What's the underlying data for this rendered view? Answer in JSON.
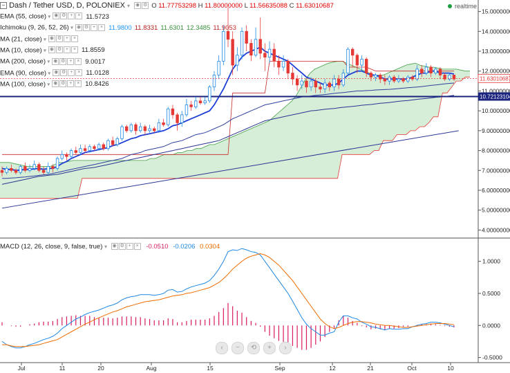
{
  "header": {
    "title": "Dash / Tether USD, D, POLONIEX",
    "ohlc": [
      {
        "k": "O",
        "v": "11.77753298"
      },
      {
        "k": "H",
        "v": "11.80000000"
      },
      {
        "k": "L",
        "v": "11.56635088"
      },
      {
        "k": "C",
        "v": "11.63010687"
      }
    ],
    "status": "realtime"
  },
  "indicators": [
    {
      "label": "EMA (55, close)",
      "values": [
        "11.5723"
      ],
      "color": "#1565c0"
    },
    {
      "label": "Ichimoku (9, 26, 52, 26)",
      "values": [
        "11.9800",
        "11.8331",
        "11.6301",
        "12.3485",
        "11.9053"
      ],
      "colors": [
        "#2196f3",
        "#b71c1c",
        "#388e3c",
        "#388e3c",
        "#c62828"
      ]
    },
    {
      "label": "MA (21, close)",
      "values": [],
      "color": "#888888"
    },
    {
      "label": "MA (10, close)",
      "values": [
        "11.8559"
      ],
      "color": "#1565c0"
    },
    {
      "label": "MA (200, close)",
      "values": [
        "9.0017"
      ],
      "color": "#283593"
    },
    {
      "label": "EMA (90, close)",
      "values": [
        "11.0128"
      ],
      "color": "#283593"
    },
    {
      "label": "MA (100, close)",
      "values": [
        "10.8426"
      ],
      "color": "#283593"
    }
  ],
  "macd_legend": {
    "label": "MACD (12, 26, close, 9, false, true)",
    "values": [
      "-0.0510",
      "-0.0206",
      "0.0304"
    ],
    "colors": [
      "#d81b60",
      "#1e88e5",
      "#ef6c00"
    ]
  },
  "price_axis": {
    "ticks": [
      "15.00000000",
      "14.00000000",
      "13.00000000",
      "12.00000000",
      "11.00000000",
      "10.00000000",
      "9.00000000",
      "8.00000000",
      "7.00000000",
      "6.00000000",
      "5.00000000",
      "4.00000000"
    ],
    "last_price": "11.63010687",
    "hline_label": "10.72123104"
  },
  "macd_axis": {
    "ticks": [
      "1.0000",
      "0.5000",
      "0.0000",
      "-0.5000"
    ]
  },
  "time_axis": {
    "ticks": [
      "Jul",
      "11",
      "20",
      "Aug",
      "15",
      "Sep",
      "12",
      "21",
      "Oct",
      "10"
    ]
  },
  "nav_buttons": [
    {
      "name": "nav-back-button",
      "glyph": "‹"
    },
    {
      "name": "zoom-out-button",
      "glyph": "−"
    },
    {
      "name": "reset-button",
      "glyph": "⟲"
    },
    {
      "name": "zoom-in-button",
      "glyph": "+"
    },
    {
      "name": "nav-forward-button",
      "glyph": "›"
    }
  ],
  "chart_data": {
    "type": "candlestick",
    "title": "Dash / Tether USD, D, POLONIEX",
    "ylim": [
      3.7,
      15.3
    ],
    "macd_ylim": [
      -0.58,
      1.32
    ],
    "hline": 10.72,
    "candles": [
      [
        7.0,
        6.9,
        7.2,
        6.7
      ],
      [
        6.9,
        7.1,
        7.2,
        6.8
      ],
      [
        7.1,
        7.0,
        7.3,
        6.9
      ],
      [
        7.0,
        6.9,
        7.1,
        6.8
      ],
      [
        6.9,
        7.2,
        7.3,
        6.8
      ],
      [
        7.2,
        7.0,
        7.4,
        6.9
      ],
      [
        7.0,
        7.1,
        7.3,
        6.9
      ],
      [
        7.1,
        7.3,
        7.5,
        7.0
      ],
      [
        7.3,
        7.0,
        7.4,
        6.9
      ],
      [
        7.0,
        6.9,
        7.2,
        6.8
      ],
      [
        6.9,
        7.2,
        7.4,
        6.8
      ],
      [
        7.2,
        7.1,
        7.3,
        6.9
      ],
      [
        7.1,
        7.6,
        7.7,
        7.0
      ],
      [
        7.6,
        7.8,
        8.0,
        7.5
      ],
      [
        7.8,
        7.7,
        7.9,
        7.5
      ],
      [
        7.7,
        8.0,
        8.1,
        7.6
      ],
      [
        8.0,
        7.9,
        8.2,
        7.8
      ],
      [
        7.9,
        8.1,
        8.3,
        7.8
      ],
      [
        8.1,
        8.0,
        8.3,
        7.9
      ],
      [
        8.0,
        8.2,
        8.3,
        7.9
      ],
      [
        8.2,
        8.1,
        8.3,
        8.0
      ],
      [
        8.1,
        8.3,
        8.4,
        8.0
      ],
      [
        8.3,
        8.1,
        8.4,
        8.0
      ],
      [
        8.1,
        8.5,
        8.6,
        8.0
      ],
      [
        8.5,
        8.3,
        8.7,
        8.2
      ],
      [
        8.3,
        8.6,
        8.7,
        8.2
      ],
      [
        8.6,
        9.2,
        9.3,
        8.5
      ],
      [
        9.2,
        9.0,
        9.3,
        8.9
      ],
      [
        9.0,
        9.3,
        9.4,
        8.9
      ],
      [
        9.3,
        9.0,
        9.4,
        8.8
      ],
      [
        9.0,
        9.2,
        9.4,
        8.9
      ],
      [
        9.2,
        9.0,
        9.3,
        8.8
      ],
      [
        9.0,
        9.1,
        9.3,
        8.9
      ],
      [
        9.1,
        9.0,
        9.2,
        8.9
      ],
      [
        9.0,
        9.4,
        9.6,
        8.9
      ],
      [
        9.4,
        9.3,
        9.6,
        9.2
      ],
      [
        9.3,
        10.1,
        10.2,
        9.2
      ],
      [
        10.1,
        9.8,
        10.3,
        9.6
      ],
      [
        9.8,
        9.4,
        9.9,
        9.0
      ],
      [
        9.4,
        9.8,
        10.0,
        9.2
      ],
      [
        9.8,
        10.3,
        10.6,
        9.7
      ],
      [
        10.3,
        10.2,
        10.5,
        10.0
      ],
      [
        10.2,
        10.5,
        10.7,
        10.1
      ],
      [
        10.5,
        10.4,
        10.7,
        10.3
      ],
      [
        10.4,
        10.5,
        10.7,
        10.3
      ],
      [
        10.5,
        11.2,
        11.3,
        10.4
      ],
      [
        11.2,
        11.8,
        12.0,
        11.0
      ],
      [
        11.8,
        12.5,
        12.8,
        11.6
      ],
      [
        12.5,
        14.0,
        14.3,
        12.3
      ],
      [
        14.0,
        13.6,
        15.2,
        13.2
      ],
      [
        13.6,
        12.3,
        14.0,
        11.8
      ],
      [
        12.3,
        12.8,
        13.2,
        12.0
      ],
      [
        12.8,
        14.0,
        14.2,
        12.6
      ],
      [
        14.0,
        13.4,
        14.3,
        13.0
      ],
      [
        13.4,
        12.8,
        13.6,
        12.5
      ],
      [
        12.8,
        13.6,
        14.2,
        12.7
      ],
      [
        13.6,
        12.9,
        14.7,
        12.6
      ],
      [
        12.9,
        12.7,
        13.4,
        12.0
      ],
      [
        12.7,
        13.1,
        13.5,
        12.4
      ],
      [
        13.1,
        12.5,
        13.4,
        12.2
      ],
      [
        12.5,
        12.2,
        12.8,
        11.8
      ],
      [
        12.2,
        12.5,
        12.8,
        12.0
      ],
      [
        12.5,
        11.9,
        12.6,
        11.6
      ],
      [
        11.9,
        11.6,
        12.2,
        11.3
      ],
      [
        11.6,
        11.3,
        11.8,
        11.0
      ],
      [
        11.3,
        11.5,
        11.8,
        11.1
      ],
      [
        11.5,
        11.2,
        11.6,
        10.9
      ],
      [
        11.2,
        11.5,
        11.7,
        11.0
      ],
      [
        11.5,
        11.2,
        11.6,
        10.9
      ],
      [
        11.2,
        11.1,
        11.4,
        10.9
      ],
      [
        11.1,
        11.4,
        11.6,
        10.9
      ],
      [
        11.4,
        11.2,
        11.5,
        11.0
      ],
      [
        11.2,
        11.6,
        11.8,
        11.0
      ],
      [
        11.6,
        11.3,
        11.8,
        11.1
      ],
      [
        11.3,
        11.9,
        12.1,
        11.2
      ],
      [
        11.9,
        13.1,
        13.2,
        11.8
      ],
      [
        13.1,
        12.8,
        13.2,
        12.2
      ],
      [
        12.8,
        12.3,
        12.9,
        11.9
      ],
      [
        12.3,
        12.6,
        12.8,
        12.0
      ],
      [
        12.6,
        11.9,
        12.7,
        11.7
      ],
      [
        11.9,
        11.7,
        12.0,
        11.5
      ],
      [
        11.7,
        11.8,
        11.9,
        11.5
      ],
      [
        11.8,
        11.6,
        11.9,
        11.4
      ],
      [
        11.6,
        11.5,
        11.8,
        11.3
      ],
      [
        11.5,
        11.7,
        11.8,
        11.3
      ],
      [
        11.7,
        11.5,
        11.8,
        11.4
      ],
      [
        11.5,
        11.6,
        11.8,
        11.4
      ],
      [
        11.6,
        11.5,
        11.7,
        11.4
      ],
      [
        11.5,
        11.7,
        11.8,
        11.4
      ],
      [
        11.7,
        11.6,
        11.8,
        11.5
      ],
      [
        11.6,
        12.1,
        12.3,
        11.5
      ],
      [
        12.1,
        11.9,
        12.3,
        11.7
      ],
      [
        11.9,
        12.2,
        12.4,
        11.8
      ],
      [
        12.2,
        11.9,
        12.3,
        11.7
      ],
      [
        11.9,
        12.1,
        12.2,
        11.8
      ],
      [
        12.1,
        11.8,
        12.2,
        11.6
      ],
      [
        11.8,
        11.6,
        11.9,
        11.5
      ],
      [
        11.6,
        11.8,
        11.9,
        11.5
      ],
      [
        11.8,
        11.6,
        11.8,
        11.5
      ]
    ],
    "ma_fast": [
      7.1,
      7.05,
      7.05,
      7.0,
      7.02,
      7.05,
      7.05,
      7.08,
      7.1,
      7.05,
      7.1,
      7.1,
      7.2,
      7.35,
      7.45,
      7.6,
      7.7,
      7.8,
      7.9,
      7.95,
      8.0,
      8.05,
      8.1,
      8.15,
      8.25,
      8.3,
      8.4,
      8.5,
      8.6,
      8.65,
      8.75,
      8.8,
      8.85,
      8.9,
      8.95,
      9.0,
      9.1,
      9.25,
      9.3,
      9.4,
      9.5,
      9.6,
      9.7,
      9.8,
      9.9,
      10.0,
      10.3,
      10.7,
      11.1,
      11.6,
      12.1,
      12.4,
      12.7,
      12.9,
      13.0,
      13.1,
      13.2,
      13.0,
      12.9,
      12.8,
      12.7,
      12.6,
      12.5,
      12.3,
      12.1,
      11.9,
      11.7,
      11.6,
      11.5,
      11.4,
      11.3,
      11.3,
      11.3,
      11.4,
      11.6,
      11.8,
      11.9,
      12.0,
      12.0,
      11.9,
      11.8,
      11.8,
      11.7,
      11.6,
      11.6,
      11.6,
      11.6,
      11.6,
      11.6,
      11.7,
      11.8,
      11.9,
      11.9,
      12.0,
      12.0,
      11.9,
      11.9,
      11.9,
      11.85
    ],
    "ma_mid": [
      6.6,
      6.6,
      6.62,
      6.63,
      6.65,
      6.67,
      6.7,
      6.72,
      6.75,
      6.78,
      6.8,
      6.85,
      6.9,
      6.95,
      7.0,
      7.05,
      7.1,
      7.15,
      7.2,
      7.25,
      7.3,
      7.35,
      7.4,
      7.45,
      7.5,
      7.55,
      7.6,
      7.7,
      7.8,
      7.85,
      7.9,
      8.0,
      8.05,
      8.1,
      8.15,
      8.2,
      8.3,
      8.4,
      8.45,
      8.5,
      8.6,
      8.7,
      8.8,
      8.85,
      8.9,
      9.0,
      9.1,
      9.2,
      9.3,
      9.45,
      9.6,
      9.7,
      9.8,
      9.9,
      10.0,
      10.1,
      10.2,
      10.3,
      10.35,
      10.4,
      10.45,
      10.5,
      10.55,
      10.6,
      10.65,
      10.7,
      10.72,
      10.75,
      10.78,
      10.8,
      10.82,
      10.85,
      10.88,
      10.9,
      10.92,
      10.95,
      10.97,
      11.0,
      11.0,
      11.02,
      11.03,
      11.05,
      11.06,
      11.07,
      11.08,
      11.1,
      11.12,
      11.14,
      11.16,
      11.18,
      11.2,
      11.22,
      11.25,
      11.28,
      11.3,
      11.33,
      11.36,
      11.38,
      11.4
    ],
    "ma_slow": [
      6.3,
      6.35,
      6.4,
      6.45,
      6.5,
      6.55,
      6.6,
      6.65,
      6.7,
      6.72,
      6.75,
      6.78,
      6.8,
      6.85,
      6.9,
      6.95,
      7.0,
      7.05,
      7.1,
      7.12,
      7.15,
      7.2,
      7.25,
      7.3,
      7.35,
      7.4,
      7.45,
      7.5,
      7.55,
      7.6,
      7.65,
      7.7,
      7.75,
      7.8,
      7.85,
      7.9,
      7.95,
      8.0,
      8.05,
      8.1,
      8.15,
      8.2,
      8.25,
      8.3,
      8.35,
      8.4,
      8.45,
      8.5,
      8.6,
      8.7,
      8.8,
      8.9,
      9.0,
      9.1,
      9.2,
      9.3,
      9.4,
      9.5,
      9.55,
      9.6,
      9.65,
      9.7,
      9.75,
      9.8,
      9.85,
      9.9,
      9.95,
      10.0,
      10.02,
      10.05,
      10.08,
      10.1,
      10.12,
      10.15,
      10.18,
      10.2,
      10.22,
      10.25,
      10.28,
      10.3,
      10.32,
      10.35,
      10.38,
      10.4,
      10.42,
      10.45,
      10.48,
      10.5,
      10.52,
      10.55,
      10.58,
      10.6,
      10.62,
      10.65,
      10.68,
      10.7,
      10.72,
      10.75,
      10.78
    ],
    "ma_200": [
      [
        0,
        5.1
      ],
      [
        100,
        9.0
      ]
    ],
    "kijun": [
      7.8,
      7.8,
      7.8,
      7.8,
      7.8,
      7.8,
      7.8,
      7.8,
      7.8,
      7.8,
      7.8,
      7.8,
      7.8,
      7.8,
      7.8,
      7.8,
      7.8,
      7.8,
      7.8,
      7.8,
      7.8,
      7.8,
      7.8,
      7.8,
      7.8,
      7.8,
      7.8,
      7.8,
      7.8,
      7.8,
      7.8,
      7.8,
      7.8,
      7.8,
      7.8,
      7.8,
      7.8,
      7.8,
      7.8,
      7.8,
      7.8,
      7.8,
      7.8,
      7.8,
      7.8,
      7.8,
      7.8,
      7.8,
      7.8,
      7.8,
      10.9,
      10.9,
      10.9,
      10.9,
      10.9,
      10.9,
      10.9,
      10.9,
      12.5,
      12.5,
      12.5,
      12.5,
      12.5,
      12.5,
      12.5,
      12.5,
      12.5,
      12.5,
      12.5,
      12.5,
      12.5,
      12.5,
      12.5,
      12.5,
      12.5,
      12.2,
      12.2,
      12.2,
      12.2,
      12.2,
      12.1,
      12.0,
      12.0,
      12.0,
      12.0,
      12.0,
      12.0,
      12.0,
      12.0,
      12.0,
      12.0,
      12.0,
      12.0,
      12.0,
      12.0,
      12.0,
      12.0,
      12.0,
      12.0
    ],
    "cloud_a": [
      7.4,
      7.4,
      7.4,
      7.35,
      7.3,
      7.25,
      7.2,
      7.2,
      7.2,
      7.2,
      7.2,
      7.2,
      7.3,
      7.4,
      7.4,
      7.45,
      7.5,
      7.5,
      7.5,
      7.5,
      7.5,
      7.5,
      7.5,
      7.5,
      7.5,
      7.5,
      7.5,
      7.5,
      7.5,
      7.5,
      7.5,
      7.5,
      7.5,
      7.6,
      7.6,
      7.7,
      7.8,
      7.8,
      7.8,
      7.9,
      7.9,
      8.0,
      8.0,
      8.1,
      8.1,
      8.2,
      8.3,
      8.3,
      8.4,
      8.5,
      8.6,
      8.7,
      8.8,
      8.9,
      9.0,
      9.1,
      9.2,
      9.3,
      9.4,
      9.5,
      9.7,
      9.9,
      10.1,
      10.3,
      10.5,
      10.8,
      11.2,
      11.6,
      11.9,
      12.1,
      12.2,
      12.3,
      12.4,
      12.45,
      12.5,
      12.5,
      12.4,
      12.3,
      12.2,
      12.1,
      12.0,
      11.9,
      11.8,
      11.8,
      11.8,
      11.9,
      12.0,
      12.1,
      12.2,
      12.3,
      12.35,
      12.4,
      12.3,
      12.25,
      12.2,
      12.2,
      12.15,
      12.1,
      12.1,
      12.1,
      12.1,
      12.05,
      12.0,
      12.0
    ],
    "cloud_b": [
      5.6,
      5.6,
      5.6,
      5.6,
      5.6,
      5.6,
      5.6,
      5.6,
      5.6,
      5.6,
      5.6,
      5.6,
      5.6,
      5.6,
      5.6,
      5.6,
      5.6,
      5.6,
      6.6,
      6.6,
      6.6,
      6.6,
      6.6,
      6.6,
      6.6,
      6.6,
      6.6,
      6.6,
      6.6,
      6.6,
      6.6,
      6.6,
      6.6,
      6.6,
      6.6,
      6.6,
      6.6,
      6.6,
      6.6,
      6.6,
      6.6,
      6.6,
      6.6,
      6.6,
      6.6,
      6.6,
      6.6,
      6.6,
      6.6,
      6.6,
      6.6,
      6.6,
      6.6,
      6.6,
      6.6,
      6.6,
      6.6,
      6.6,
      6.6,
      6.6,
      6.6,
      6.6,
      6.6,
      6.6,
      6.6,
      6.6,
      6.6,
      6.6,
      6.6,
      6.6,
      6.6,
      6.6,
      6.6,
      6.6,
      6.6,
      7.8,
      7.8,
      7.8,
      7.8,
      7.8,
      7.8,
      7.8,
      8.0,
      8.0,
      8.5,
      8.5,
      8.5,
      8.8,
      8.8,
      8.8,
      9.0,
      9.0,
      9.2,
      9.2,
      9.4,
      9.7,
      9.7,
      10.9,
      10.9,
      11.2,
      11.5,
      11.5,
      11.7,
      11.7,
      11.8,
      11.8
    ],
    "macd_line": [
      -0.25,
      -0.3,
      -0.33,
      -0.35,
      -0.35,
      -0.33,
      -0.3,
      -0.28,
      -0.25,
      -0.22,
      -0.2,
      -0.17,
      -0.12,
      -0.05,
      0.0,
      0.05,
      0.1,
      0.13,
      0.17,
      0.2,
      0.22,
      0.24,
      0.27,
      0.3,
      0.32,
      0.35,
      0.4,
      0.43,
      0.45,
      0.46,
      0.48,
      0.48,
      0.48,
      0.47,
      0.48,
      0.5,
      0.55,
      0.56,
      0.52,
      0.53,
      0.57,
      0.6,
      0.62,
      0.64,
      0.66,
      0.7,
      0.78,
      0.88,
      1.0,
      1.15,
      1.18,
      1.17,
      1.2,
      1.18,
      1.15,
      1.14,
      1.1,
      1.0,
      0.9,
      0.8,
      0.7,
      0.6,
      0.5,
      0.38,
      0.25,
      0.12,
      0.02,
      -0.05,
      -0.1,
      -0.15,
      -0.15,
      -0.12,
      -0.1,
      0.05,
      0.15,
      0.15,
      0.12,
      0.1,
      0.05,
      0.02,
      -0.02,
      -0.03,
      -0.05,
      -0.07,
      -0.05,
      -0.06,
      -0.06,
      -0.05,
      -0.05,
      -0.02,
      0.0,
      0.02,
      0.03,
      0.05,
      0.05,
      0.04,
      0.02,
      0.0,
      -0.02
    ],
    "signal_line": [
      -0.3,
      -0.3,
      -0.32,
      -0.33,
      -0.33,
      -0.33,
      -0.32,
      -0.31,
      -0.3,
      -0.28,
      -0.26,
      -0.24,
      -0.22,
      -0.18,
      -0.14,
      -0.1,
      -0.06,
      -0.02,
      0.02,
      0.05,
      0.09,
      0.12,
      0.15,
      0.18,
      0.21,
      0.23,
      0.26,
      0.29,
      0.31,
      0.33,
      0.35,
      0.37,
      0.38,
      0.39,
      0.4,
      0.42,
      0.44,
      0.46,
      0.47,
      0.48,
      0.5,
      0.51,
      0.53,
      0.55,
      0.57,
      0.59,
      0.63,
      0.67,
      0.73,
      0.8,
      0.88,
      0.94,
      1.0,
      1.05,
      1.08,
      1.1,
      1.12,
      1.1,
      1.06,
      1.0,
      0.94,
      0.86,
      0.78,
      0.7,
      0.6,
      0.5,
      0.4,
      0.3,
      0.2,
      0.1,
      0.03,
      -0.02,
      -0.05,
      -0.03,
      0.0,
      0.03,
      0.05,
      0.06,
      0.06,
      0.05,
      0.04,
      0.02,
      0.01,
      0.0,
      0.0,
      -0.01,
      -0.02,
      -0.03,
      -0.03,
      -0.02,
      -0.01,
      0.0,
      0.01,
      0.02,
      0.03,
      0.03,
      0.03,
      0.02,
      0.01
    ],
    "histogram_positive_color": "#d81b60",
    "histogram_negative_color": "#d81b60"
  }
}
